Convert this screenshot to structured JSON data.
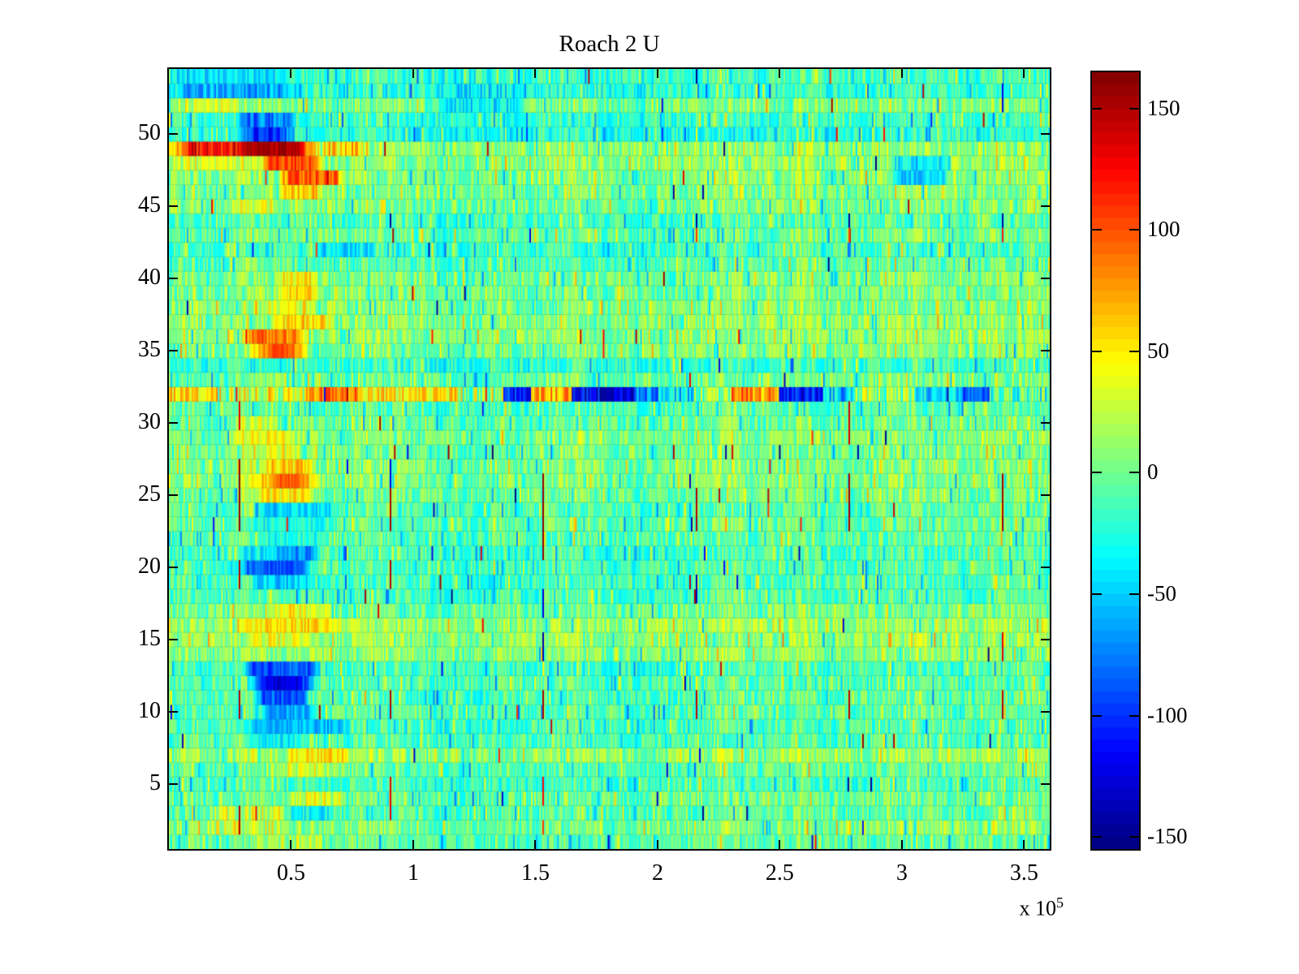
{
  "figure": {
    "background": "#ffffff"
  },
  "chart_data": {
    "type": "heatmap",
    "title": "Roach 2 U",
    "colormap": "jet",
    "clim": [
      -155,
      165
    ],
    "x_axis": {
      "range_e5": [
        0,
        3.605
      ],
      "tick_values_e5": [
        0.5,
        1,
        1.5,
        2,
        2.5,
        3,
        3.5
      ],
      "tick_labels": [
        "0.5",
        "1",
        "1.5",
        "2",
        "2.5",
        "3",
        "3.5"
      ],
      "scale_prefix": "x 10",
      "scale_exponent": "5"
    },
    "y_axis": {
      "range_rows": [
        0.5,
        54.5
      ],
      "tick_values": [
        5,
        10,
        15,
        20,
        25,
        30,
        35,
        40,
        45,
        50
      ],
      "tick_labels": [
        "5",
        "10",
        "15",
        "20",
        "25",
        "30",
        "35",
        "40",
        "45",
        "50"
      ]
    },
    "colorbar": {
      "tick_values": [
        150,
        100,
        50,
        0,
        -50,
        -100,
        -150
      ],
      "tick_labels": [
        "150",
        "100",
        "50",
        "0",
        "-50",
        "-100",
        "-150"
      ],
      "levels": 64
    },
    "grid": {
      "rows": 54,
      "cols": 540,
      "seed": 20131,
      "base_noise": 26,
      "stripe_noise": 52,
      "stripe_prob": 0.17,
      "outlier_prob": 0.004,
      "outlier_min": 105,
      "outlier_span": 55
    },
    "row_base": [
      -6,
      4,
      -8,
      -2,
      -14,
      -6,
      12,
      -10,
      -12,
      -8,
      -10,
      -8,
      -14,
      6,
      10,
      14,
      0,
      -12,
      -14,
      -10,
      -14,
      -8,
      -4,
      -8,
      0,
      4,
      4,
      0,
      6,
      -4,
      -10,
      10,
      -2,
      -20,
      4,
      8,
      8,
      4,
      2,
      2,
      -8,
      -14,
      -2,
      -12,
      2,
      4,
      6,
      8,
      10,
      -26,
      -18,
      2,
      -22,
      -16
    ],
    "features": [
      {
        "rows": [
          54,
          54
        ],
        "x_e5": [
          0.0,
          0.5
        ],
        "value": -45,
        "jitter": 25
      },
      {
        "rows": [
          53,
          53
        ],
        "x_e5": [
          0.0,
          0.55
        ],
        "value": -62,
        "jitter": 28
      },
      {
        "rows": [
          52,
          52
        ],
        "x_e5": [
          0.02,
          0.3
        ],
        "value": 28,
        "jitter": 30
      },
      {
        "rows": [
          52,
          53
        ],
        "x_e5": [
          1.1,
          1.45
        ],
        "value": -40,
        "jitter": 28
      },
      {
        "rows": [
          50,
          51
        ],
        "x_e5": [
          0.28,
          0.52
        ],
        "value": -78,
        "jitter": 28
      },
      {
        "rows": [
          50,
          50
        ],
        "x_e5": [
          0.33,
          0.47
        ],
        "value": -105,
        "jitter": 22
      },
      {
        "rows": [
          49,
          49
        ],
        "x_e5": [
          0.0,
          0.62
        ],
        "value": 125,
        "jitter": 28
      },
      {
        "rows": [
          49,
          49
        ],
        "x_e5": [
          0.28,
          0.56
        ],
        "value": 152,
        "jitter": 10
      },
      {
        "rows": [
          49,
          49
        ],
        "x_e5": [
          0.62,
          0.8
        ],
        "value": 58,
        "jitter": 35
      },
      {
        "rows": [
          48,
          48
        ],
        "x_e5": [
          0.0,
          0.38
        ],
        "value": 35,
        "jitter": 30
      },
      {
        "rows": [
          48,
          48
        ],
        "x_e5": [
          0.38,
          0.63
        ],
        "value": 108,
        "jitter": 24
      },
      {
        "rows": [
          47,
          47
        ],
        "x_e5": [
          0.45,
          0.72
        ],
        "value": 95,
        "jitter": 26
      },
      {
        "rows": [
          46,
          46
        ],
        "x_e5": [
          0.45,
          0.62
        ],
        "value": 62,
        "jitter": 28
      },
      {
        "rows": [
          47,
          48
        ],
        "x_e5": [
          2.95,
          3.2
        ],
        "value": -45,
        "jitter": 28
      },
      {
        "rows": [
          45,
          45
        ],
        "x_e5": [
          0.25,
          0.45
        ],
        "value": 40,
        "jitter": 30
      },
      {
        "rows": [
          42,
          42
        ],
        "x_e5": [
          0.6,
          0.85
        ],
        "value": -45,
        "jitter": 25
      },
      {
        "rows": [
          39,
          40
        ],
        "x_e5": [
          0.44,
          0.62
        ],
        "value": 48,
        "jitter": 28
      },
      {
        "rows": [
          38,
          38
        ],
        "x_e5": [
          0.36,
          0.6
        ],
        "value": 38,
        "jitter": 35
      },
      {
        "rows": [
          37,
          37
        ],
        "x_e5": [
          0.42,
          0.66
        ],
        "value": 55,
        "jitter": 30
      },
      {
        "rows": [
          36,
          36
        ],
        "x_e5": [
          0.3,
          0.57
        ],
        "value": 88,
        "jitter": 24
      },
      {
        "rows": [
          35,
          35
        ],
        "x_e5": [
          0.33,
          0.57
        ],
        "value": 72,
        "jitter": 24
      },
      {
        "rows": [
          35,
          35
        ],
        "x_e5": [
          0.4,
          0.52
        ],
        "value": 100,
        "jitter": 16
      },
      {
        "rows": [
          29,
          29
        ],
        "x_e5": [
          0.26,
          0.5
        ],
        "value": 45,
        "jitter": 26
      },
      {
        "rows": [
          30,
          30
        ],
        "x_e5": [
          0.26,
          0.45
        ],
        "value": 28,
        "jitter": 30
      },
      {
        "rows": [
          28,
          28
        ],
        "x_e5": [
          0.3,
          0.55
        ],
        "value": 40,
        "jitter": 30
      },
      {
        "rows": [
          27,
          27
        ],
        "x_e5": [
          0.38,
          0.6
        ],
        "value": 58,
        "jitter": 25
      },
      {
        "rows": [
          26,
          26
        ],
        "x_e5": [
          0.3,
          0.62
        ],
        "value": 60,
        "jitter": 26
      },
      {
        "rows": [
          26,
          26
        ],
        "x_e5": [
          0.42,
          0.57
        ],
        "value": 92,
        "jitter": 16
      },
      {
        "rows": [
          25,
          25
        ],
        "x_e5": [
          0.35,
          0.6
        ],
        "value": 48,
        "jitter": 26
      },
      {
        "rows": [
          24,
          24
        ],
        "x_e5": [
          0.35,
          0.7
        ],
        "value": -45,
        "jitter": 24
      },
      {
        "rows": [
          23,
          23
        ],
        "x_e5": [
          0.3,
          0.7
        ],
        "value": -30,
        "jitter": 24
      },
      {
        "rows": [
          22,
          22
        ],
        "x_e5": [
          0.35,
          0.65
        ],
        "value": -28,
        "jitter": 24
      },
      {
        "rows": [
          21,
          21
        ],
        "x_e5": [
          0.28,
          0.42
        ],
        "value": -35,
        "jitter": 24
      },
      {
        "rows": [
          21,
          21
        ],
        "x_e5": [
          0.42,
          0.62
        ],
        "value": -70,
        "jitter": 24
      },
      {
        "rows": [
          20,
          20
        ],
        "x_e5": [
          0.28,
          0.58
        ],
        "value": -88,
        "jitter": 20
      },
      {
        "rows": [
          19,
          19
        ],
        "x_e5": [
          0.33,
          0.6
        ],
        "value": -50,
        "jitter": 24
      },
      {
        "rows": [
          17,
          17
        ],
        "x_e5": [
          0.4,
          0.67
        ],
        "value": 42,
        "jitter": 30
      },
      {
        "rows": [
          16,
          16
        ],
        "x_e5": [
          0.28,
          0.72
        ],
        "value": 52,
        "jitter": 24
      },
      {
        "rows": [
          15,
          15
        ],
        "x_e5": [
          0.3,
          0.6
        ],
        "value": 38,
        "jitter": 26
      },
      {
        "rows": [
          13,
          13
        ],
        "x_e5": [
          0.3,
          0.62
        ],
        "value": -90,
        "jitter": 24
      },
      {
        "rows": [
          12,
          12
        ],
        "x_e5": [
          0.33,
          0.6
        ],
        "value": -98,
        "jitter": 22
      },
      {
        "rows": [
          12,
          12
        ],
        "x_e5": [
          0.38,
          0.55
        ],
        "value": -125,
        "jitter": 16
      },
      {
        "rows": [
          11,
          11
        ],
        "x_e5": [
          0.35,
          0.58
        ],
        "value": -85,
        "jitter": 24
      },
      {
        "rows": [
          10,
          10
        ],
        "x_e5": [
          0.38,
          0.6
        ],
        "value": -60,
        "jitter": 24
      },
      {
        "rows": [
          9,
          9
        ],
        "x_e5": [
          0.3,
          0.75
        ],
        "value": -58,
        "jitter": 22
      },
      {
        "rows": [
          8,
          8
        ],
        "x_e5": [
          0.3,
          0.55
        ],
        "value": -35,
        "jitter": 24
      },
      {
        "rows": [
          7,
          7
        ],
        "x_e5": [
          0.48,
          0.75
        ],
        "value": 55,
        "jitter": 25
      },
      {
        "rows": [
          6,
          6
        ],
        "x_e5": [
          0.45,
          0.7
        ],
        "value": 30,
        "jitter": 30
      },
      {
        "rows": [
          4,
          4
        ],
        "x_e5": [
          0.48,
          0.73
        ],
        "value": 35,
        "jitter": 28
      },
      {
        "rows": [
          3,
          3
        ],
        "x_e5": [
          0.4,
          0.7
        ],
        "value": -35,
        "jitter": 25
      },
      {
        "rows": [
          2,
          3
        ],
        "x_e5": [
          0.15,
          0.5
        ],
        "value": 30,
        "jitter": 40
      },
      {
        "rows": [
          1,
          1
        ],
        "x_e5": [
          0.35,
          0.65
        ],
        "value": 20,
        "jitter": 35
      }
    ],
    "special_row": {
      "row": 32,
      "segments": [
        {
          "x_e5": [
            0.0,
            0.2
          ],
          "value": 55,
          "jitter": 35
        },
        {
          "x_e5": [
            0.2,
            0.56
          ],
          "value": 28,
          "jitter": 55
        },
        {
          "x_e5": [
            0.56,
            0.77
          ],
          "value": 85,
          "jitter": 30
        },
        {
          "x_e5": [
            0.77,
            1.0
          ],
          "value": 45,
          "jitter": 40
        },
        {
          "x_e5": [
            1.0,
            1.18
          ],
          "value": 55,
          "jitter": 35
        },
        {
          "x_e5": [
            1.18,
            1.37
          ],
          "value": 15,
          "jitter": 55
        },
        {
          "x_e5": [
            1.37,
            1.48
          ],
          "value": -105,
          "jitter": 30
        },
        {
          "x_e5": [
            1.48,
            1.65
          ],
          "value": 70,
          "jitter": 35
        },
        {
          "x_e5": [
            1.65,
            1.9
          ],
          "value": -120,
          "jitter": 35
        },
        {
          "x_e5": [
            1.9,
            2.0
          ],
          "value": -70,
          "jitter": 40
        },
        {
          "x_e5": [
            2.0,
            2.15
          ],
          "value": -40,
          "jitter": 45
        },
        {
          "x_e5": [
            2.15,
            2.3
          ],
          "value": 5,
          "jitter": 40
        },
        {
          "x_e5": [
            2.3,
            2.5
          ],
          "value": 82,
          "jitter": 35
        },
        {
          "x_e5": [
            2.5,
            2.68
          ],
          "value": -115,
          "jitter": 35
        },
        {
          "x_e5": [
            2.68,
            2.8
          ],
          "value": -50,
          "jitter": 40
        },
        {
          "x_e5": [
            2.8,
            3.06
          ],
          "value": 10,
          "jitter": 50
        },
        {
          "x_e5": [
            3.06,
            3.25
          ],
          "value": -55,
          "jitter": 45
        },
        {
          "x_e5": [
            3.25,
            3.36
          ],
          "value": -95,
          "jitter": 30
        },
        {
          "x_e5": [
            3.36,
            3.605
          ],
          "value": -15,
          "jitter": 45
        }
      ]
    },
    "spike_columns": [
      {
        "x_e5": 0.285,
        "segments": [
          {
            "rows": [
              23,
              27
            ],
            "value": 158
          },
          {
            "rows": [
              19,
              20
            ],
            "value": 150
          },
          {
            "rows": [
              10,
              11
            ],
            "value": 150
          },
          {
            "rows": [
              30,
              31
            ],
            "value": 135
          },
          {
            "rows": [
              2,
              3
            ],
            "value": 148
          }
        ]
      },
      {
        "x_e5": 0.905,
        "segments": [
          {
            "rows": [
              23,
              25
            ],
            "value": 155
          },
          {
            "rows": [
              19,
              20
            ],
            "value": 148
          },
          {
            "rows": [
              10,
              11
            ],
            "value": 148
          },
          {
            "rows": [
              3,
              5
            ],
            "value": 135
          },
          {
            "rows": [
              44,
              44
            ],
            "value": -140
          },
          {
            "rows": [
              26,
              27
            ],
            "value": -120
          }
        ]
      },
      {
        "x_e5": 1.53,
        "segments": [
          {
            "rows": [
              21,
              26
            ],
            "value": 158
          },
          {
            "rows": [
              10,
              11
            ],
            "value": 152
          },
          {
            "rows": [
              4,
              5
            ],
            "value": 125
          },
          {
            "rows": [
              14,
              15
            ],
            "value": -135
          },
          {
            "rows": [
              17,
              18
            ],
            "value": -125
          },
          {
            "rows": [
              2,
              2
            ],
            "value": 110
          }
        ]
      },
      {
        "x_e5": 2.155,
        "segments": [
          {
            "rows": [
              23,
              25
            ],
            "value": 150
          },
          {
            "rows": [
              10,
              11
            ],
            "value": 145
          },
          {
            "rows": [
              44,
              44
            ],
            "value": -148
          },
          {
            "rows": [
              43,
              43
            ],
            "value": 110
          },
          {
            "rows": [
              18,
              19
            ],
            "value": -130
          }
        ]
      },
      {
        "x_e5": 2.78,
        "segments": [
          {
            "rows": [
              23,
              26
            ],
            "value": 155
          },
          {
            "rows": [
              29,
              31
            ],
            "value": 140
          },
          {
            "rows": [
              10,
              11
            ],
            "value": 148
          },
          {
            "rows": [
              44,
              44
            ],
            "value": -148
          },
          {
            "rows": [
              43,
              43
            ],
            "value": 105
          }
        ]
      },
      {
        "x_e5": 3.41,
        "segments": [
          {
            "rows": [
              23,
              26
            ],
            "value": 155
          },
          {
            "rows": [
              10,
              11
            ],
            "value": 148
          },
          {
            "rows": [
              14,
              15
            ],
            "value": 132
          },
          {
            "rows": [
              44,
              44
            ],
            "value": -142
          },
          {
            "rows": [
              43,
              43
            ],
            "value": 118
          },
          {
            "rows": [
              52,
              53
            ],
            "value": -120
          }
        ]
      }
    ]
  }
}
